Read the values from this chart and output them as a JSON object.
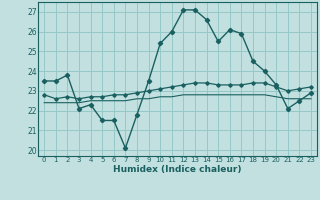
{
  "xlabel": "Humidex (Indice chaleur)",
  "ylabel": "",
  "background_color": "#c2e0e0",
  "grid_color": "#96c8c8",
  "line_color": "#1a6060",
  "xlim": [
    -0.5,
    23.5
  ],
  "ylim": [
    19.7,
    27.5
  ],
  "yticks": [
    20,
    21,
    22,
    23,
    24,
    25,
    26,
    27
  ],
  "xticks": [
    0,
    1,
    2,
    3,
    4,
    5,
    6,
    7,
    8,
    9,
    10,
    11,
    12,
    13,
    14,
    15,
    16,
    17,
    18,
    19,
    20,
    21,
    22,
    23
  ],
  "series1_x": [
    0,
    1,
    2,
    3,
    4,
    5,
    6,
    7,
    8,
    9,
    10,
    11,
    12,
    13,
    14,
    15,
    16,
    17,
    18,
    19,
    20,
    21,
    22,
    23
  ],
  "series1_y": [
    23.5,
    23.5,
    23.8,
    22.1,
    22.3,
    21.5,
    21.5,
    20.1,
    21.8,
    23.5,
    25.4,
    26.0,
    27.1,
    27.1,
    26.6,
    25.5,
    26.1,
    25.9,
    24.5,
    24.0,
    23.3,
    22.1,
    22.5,
    22.9
  ],
  "series2_x": [
    0,
    1,
    2,
    3,
    4,
    5,
    6,
    7,
    8,
    9,
    10,
    11,
    12,
    13,
    14,
    15,
    16,
    17,
    18,
    19,
    20,
    21,
    22,
    23
  ],
  "series2_y": [
    22.8,
    22.6,
    22.7,
    22.6,
    22.7,
    22.7,
    22.8,
    22.8,
    22.9,
    23.0,
    23.1,
    23.2,
    23.3,
    23.4,
    23.4,
    23.3,
    23.3,
    23.3,
    23.4,
    23.4,
    23.2,
    23.0,
    23.1,
    23.2
  ],
  "series3_x": [
    0,
    1,
    2,
    3,
    4,
    5,
    6,
    7,
    8,
    9,
    10,
    11,
    12,
    13,
    14,
    15,
    16,
    17,
    18,
    19,
    20,
    21,
    22,
    23
  ],
  "series3_y": [
    22.4,
    22.4,
    22.4,
    22.4,
    22.5,
    22.5,
    22.5,
    22.5,
    22.6,
    22.6,
    22.7,
    22.7,
    22.8,
    22.8,
    22.8,
    22.8,
    22.8,
    22.8,
    22.8,
    22.8,
    22.7,
    22.6,
    22.6,
    22.6
  ]
}
